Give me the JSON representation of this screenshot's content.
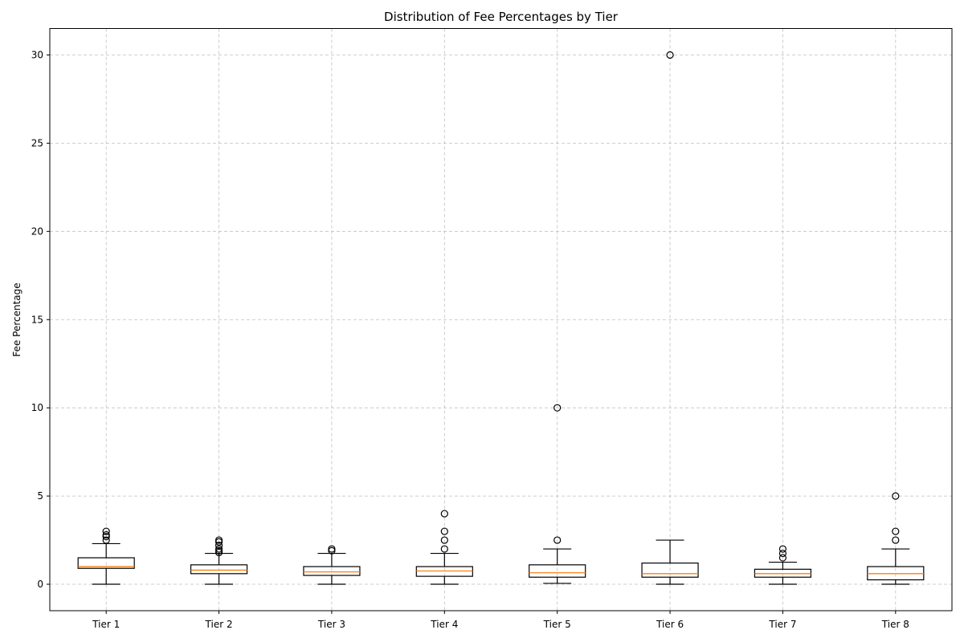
{
  "chart_data": {
    "type": "box",
    "title": "Distribution of Fee Percentages by Tier",
    "xlabel": "",
    "ylabel": "Fee Percentage",
    "ylim": [
      -1.5,
      31.5
    ],
    "yticks": [
      0,
      5,
      10,
      15,
      20,
      25,
      30
    ],
    "grid": true,
    "colors": {
      "box": "#000000",
      "median": "#ff7f0e",
      "grid": "#b0b0b0"
    },
    "categories": [
      "Tier 1",
      "Tier 2",
      "Tier 3",
      "Tier 4",
      "Tier 5",
      "Tier 6",
      "Tier 7",
      "Tier 8"
    ],
    "boxes": [
      {
        "whisker_low": 0.0,
        "q1": 0.9,
        "median": 1.0,
        "q3": 1.5,
        "whisker_high": 2.3,
        "outliers": [
          2.5,
          2.7,
          2.8,
          3.0
        ]
      },
      {
        "whisker_low": 0.0,
        "q1": 0.6,
        "median": 0.8,
        "q3": 1.1,
        "whisker_high": 1.75,
        "outliers": [
          1.8,
          1.9,
          2.0,
          2.2,
          2.4,
          2.5
        ]
      },
      {
        "whisker_low": 0.0,
        "q1": 0.5,
        "median": 0.7,
        "q3": 1.0,
        "whisker_high": 1.75,
        "outliers": [
          1.9,
          2.0
        ]
      },
      {
        "whisker_low": 0.0,
        "q1": 0.45,
        "median": 0.75,
        "q3": 1.0,
        "whisker_high": 1.75,
        "outliers": [
          2.0,
          2.5,
          3.0,
          4.0
        ]
      },
      {
        "whisker_low": 0.05,
        "q1": 0.4,
        "median": 0.65,
        "q3": 1.1,
        "whisker_high": 2.0,
        "outliers": [
          2.5,
          10.0
        ]
      },
      {
        "whisker_low": 0.0,
        "q1": 0.4,
        "median": 0.6,
        "q3": 1.2,
        "whisker_high": 2.5,
        "outliers": [
          30.0
        ]
      },
      {
        "whisker_low": 0.0,
        "q1": 0.4,
        "median": 0.6,
        "q3": 0.85,
        "whisker_high": 1.25,
        "outliers": [
          1.5,
          1.75,
          2.0
        ]
      },
      {
        "whisker_low": 0.0,
        "q1": 0.25,
        "median": 0.6,
        "q3": 1.0,
        "whisker_high": 2.0,
        "outliers": [
          2.5,
          3.0,
          5.0
        ]
      }
    ]
  }
}
